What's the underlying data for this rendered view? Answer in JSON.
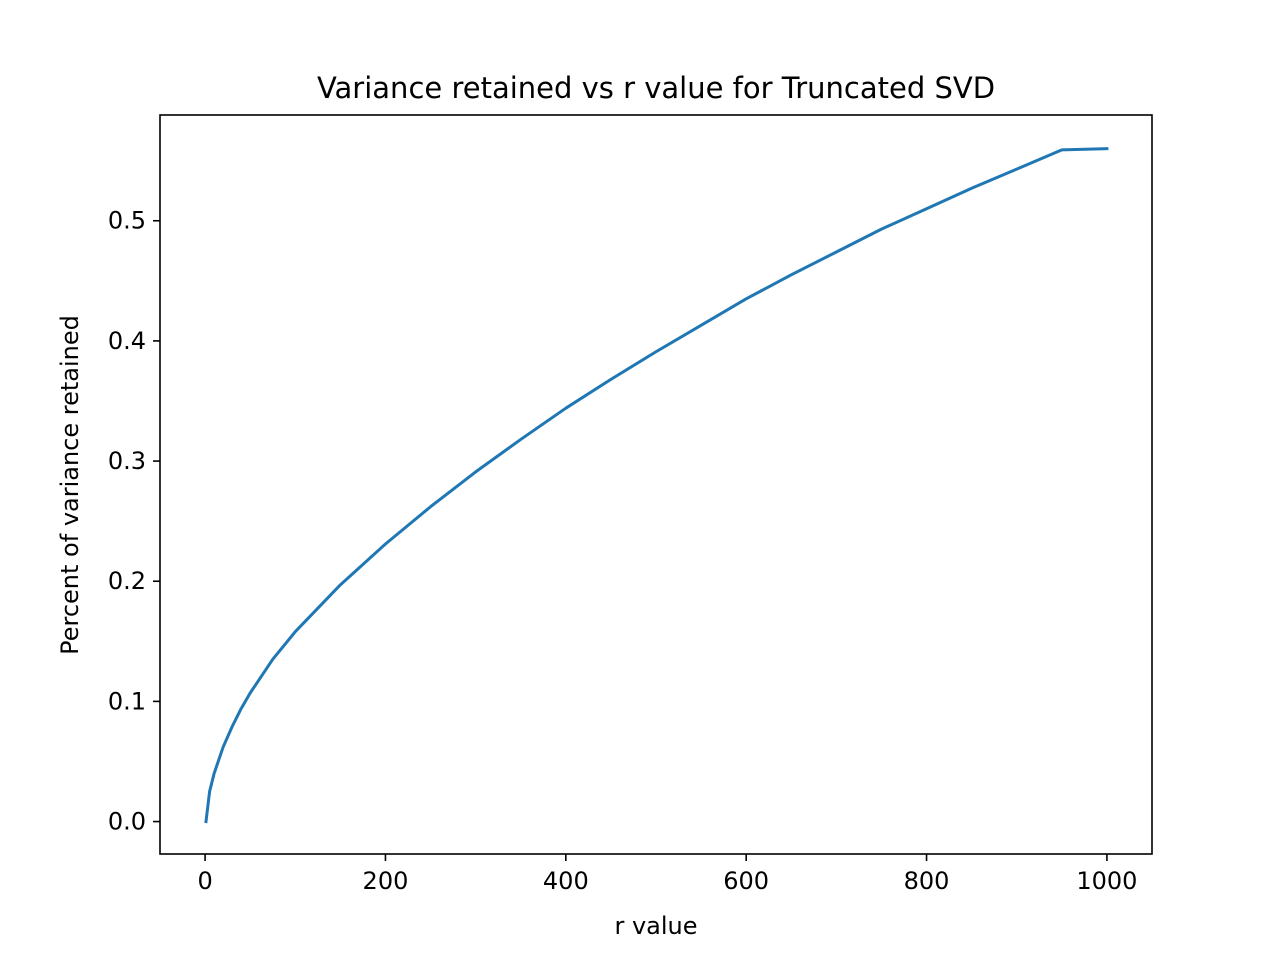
{
  "chart_data": {
    "type": "line",
    "title": "Variance retained vs r value for Truncated SVD",
    "xlabel": "r value",
    "ylabel": "Percent of variance retained",
    "xlim": [
      -50,
      1050
    ],
    "ylim": [
      -0.027,
      0.588
    ],
    "xticks": [
      0,
      200,
      400,
      600,
      800,
      1000
    ],
    "xtick_labels": [
      "0",
      "200",
      "400",
      "600",
      "800",
      "1000"
    ],
    "yticks": [
      0.0,
      0.1,
      0.2,
      0.3,
      0.4,
      0.5
    ],
    "ytick_labels": [
      "0.0",
      "0.1",
      "0.2",
      "0.3",
      "0.4",
      "0.5"
    ],
    "grid": false,
    "legend": "none",
    "series": [
      {
        "color": "#1f77b4",
        "x": [
          1,
          5,
          10,
          20,
          30,
          40,
          50,
          75,
          100,
          150,
          200,
          250,
          300,
          350,
          400,
          450,
          500,
          550,
          600,
          650,
          700,
          750,
          800,
          850,
          900,
          950,
          1000
        ],
        "y": [
          0.0,
          0.025,
          0.04,
          0.062,
          0.079,
          0.094,
          0.107,
          0.135,
          0.158,
          0.197,
          0.231,
          0.262,
          0.291,
          0.318,
          0.344,
          0.368,
          0.391,
          0.413,
          0.435,
          0.455,
          0.474,
          0.493,
          0.51,
          0.527,
          0.543,
          0.559,
          0.56
        ]
      }
    ]
  }
}
